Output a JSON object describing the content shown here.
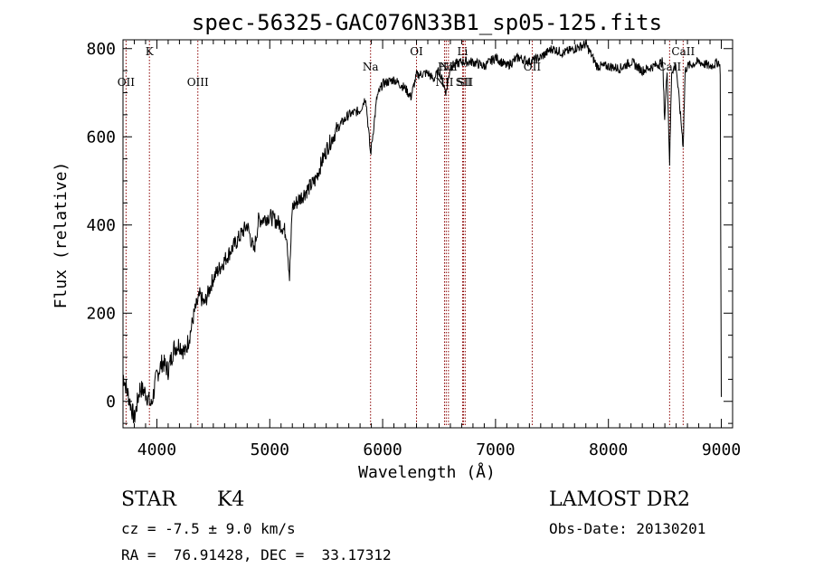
{
  "chart_data": {
    "type": "line",
    "title": "spec-56325-GAC076N33B1_sp05-125.fits",
    "xlabel": "Wavelength (Å)",
    "ylabel": "Flux (relative)",
    "xlim": [
      3700,
      9100
    ],
    "ylim": [
      -60,
      820
    ],
    "xticks": [
      4000,
      5000,
      6000,
      7000,
      8000,
      9000
    ],
    "yticks": [
      0,
      200,
      400,
      600,
      800
    ],
    "grid": false,
    "series": [
      {
        "name": "flux",
        "x": [
          3700,
          3750,
          3800,
          3850,
          3900,
          3950,
          4000,
          4050,
          4100,
          4150,
          4200,
          4250,
          4300,
          4330,
          4380,
          4420,
          4500,
          4600,
          4700,
          4800,
          4860,
          4900,
          5000,
          5100,
          5150,
          5175,
          5200,
          5300,
          5400,
          5500,
          5600,
          5700,
          5800,
          5850,
          5893,
          5950,
          6000,
          6100,
          6200,
          6250,
          6300,
          6400,
          6450,
          6500,
          6563,
          6600,
          6700,
          6800,
          6900,
          7000,
          7100,
          7200,
          7300,
          7400,
          7500,
          7600,
          7700,
          7800,
          7900,
          8000,
          8100,
          8200,
          8300,
          8400,
          8480,
          8498,
          8520,
          8542,
          8560,
          8600,
          8662,
          8680,
          8700,
          8800,
          8900,
          8980,
          8990,
          8995,
          9000
        ],
        "y": [
          60,
          10,
          -40,
          30,
          20,
          -10,
          60,
          90,
          70,
          120,
          130,
          110,
          160,
          200,
          240,
          220,
          280,
          320,
          360,
          400,
          340,
          410,
          420,
          400,
          380,
          280,
          440,
          470,
          500,
          570,
          620,
          650,
          660,
          690,
          560,
          690,
          720,
          730,
          710,
          690,
          740,
          745,
          730,
          750,
          700,
          760,
          770,
          770,
          760,
          780,
          760,
          780,
          770,
          780,
          800,
          790,
          800,
          810,
          760,
          760,
          755,
          770,
          750,
          760,
          770,
          640,
          755,
          540,
          750,
          760,
          580,
          750,
          760,
          770,
          760,
          770,
          750,
          360,
          10
        ]
      }
    ],
    "line_markers": [
      {
        "label": "OII",
        "wavelength": 3727,
        "level": "low"
      },
      {
        "label": "K",
        "wavelength": 3934,
        "level": "high"
      },
      {
        "label": "OIII",
        "wavelength": 4363,
        "level": "low"
      },
      {
        "label": "Na",
        "wavelength": 5893,
        "level": "mid"
      },
      {
        "label": "OI",
        "wavelength": 6300,
        "level": "high"
      },
      {
        "label": "NII",
        "wavelength": 6548,
        "level": "low"
      },
      {
        "label": "Hα",
        "wavelength": 6563,
        "level": "mid"
      },
      {
        "label": "NII",
        "wavelength": 6583,
        "level": "mid"
      },
      {
        "label": "Li",
        "wavelength": 6708,
        "level": "high"
      },
      {
        "label": "SII",
        "wavelength": 6716,
        "level": "low"
      },
      {
        "label": "SII",
        "wavelength": 6731,
        "level": "low"
      },
      {
        "label": "OII",
        "wavelength": 7325,
        "level": "mid"
      },
      {
        "label": "CaII",
        "wavelength": 8542,
        "level": "mid"
      },
      {
        "label": "CaII",
        "wavelength": 8662,
        "level": "high"
      }
    ],
    "colors": {
      "line": "#000000",
      "marker": "#8b0000"
    }
  },
  "info": {
    "object_class": "STAR",
    "subclass": "K4",
    "redshift_text": "cz = -7.5 ± 9.0 km/s",
    "coords_text": "RA =  76.91428, DEC =  33.17312",
    "survey": "LAMOST DR2",
    "obs_date": "Obs-Date: 20130201"
  }
}
